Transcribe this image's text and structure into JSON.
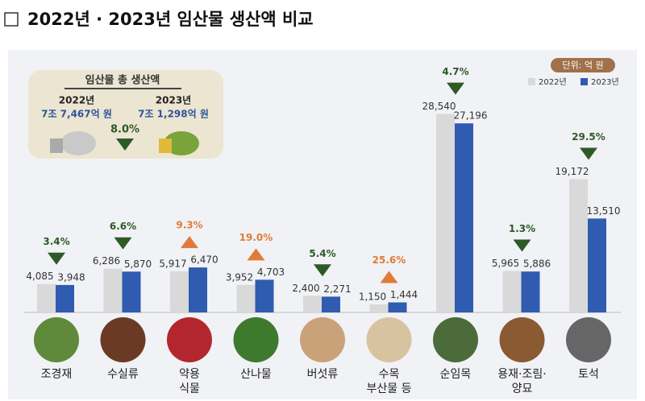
{
  "chart_data": {
    "type": "bar",
    "title": "2022년 · 2023년 임산물 생산액 비교",
    "unit": "단위: 억 원",
    "categories": [
      "조경재",
      "수실류",
      "약용\n식물",
      "산나물",
      "버섯류",
      "수목\n부산물 등",
      "순임목",
      "용재·조림·\n양묘",
      "토석"
    ],
    "series": [
      {
        "name": "2022년",
        "color": "#d9d9d9",
        "values": [
          4085,
          6286,
          5917,
          3952,
          2400,
          1150,
          28540,
          5965,
          19172
        ],
        "value_labels": [
          "4,085",
          "6,286",
          "5,917",
          "3,952",
          "2,400",
          "1,150",
          "28,540",
          "5,965",
          "19,172"
        ]
      },
      {
        "name": "2023년",
        "color": "#2f5cb0",
        "values": [
          3948,
          5870,
          6470,
          4703,
          2271,
          1444,
          27196,
          5886,
          13510
        ],
        "value_labels": [
          "3,948",
          "5,870",
          "6,470",
          "4,703",
          "2,271",
          "1,444",
          "27,196",
          "5,886",
          "13,510"
        ]
      }
    ],
    "changes": {
      "values": [
        3.4,
        6.6,
        9.3,
        19.0,
        5.4,
        25.6,
        4.7,
        1.3,
        29.5
      ],
      "value_labels": [
        "3.4%",
        "6.6%",
        "9.3%",
        "19.0%",
        "5.4%",
        "25.6%",
        "4.7%",
        "1.3%",
        "29.5%"
      ],
      "directions": [
        "down",
        "down",
        "up",
        "up",
        "down",
        "up",
        "down",
        "down",
        "down"
      ],
      "colors": {
        "up": "#e07b39",
        "down": "#2d5a27"
      }
    },
    "ylim": [
      0,
      30000
    ],
    "summary": {
      "title": "임산물 총 생산액",
      "items": [
        {
          "year": "2022년",
          "value": "7조 7,467억 원"
        },
        {
          "year": "2023년",
          "value": "7조 1,298억 원"
        }
      ],
      "change": {
        "value": 8.0,
        "label": "8.0%",
        "direction": "down"
      }
    }
  }
}
